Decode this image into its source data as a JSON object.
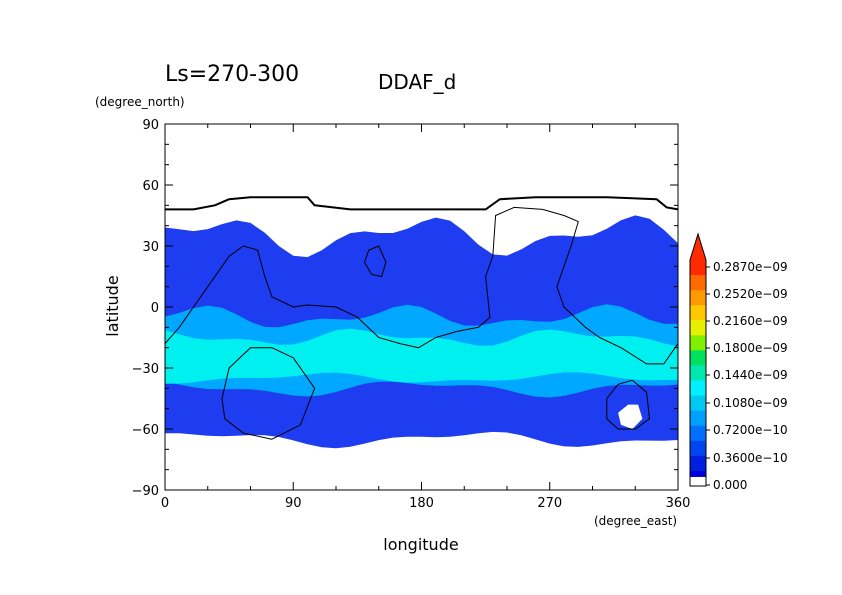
{
  "chart_data": {
    "type": "heatmap",
    "title": "DDAF_d",
    "subtitle": "Ls=270-300",
    "xlabel": "longitude",
    "ylabel": "latitude",
    "x_units": "(degree_east)",
    "y_units": "(degree_north)",
    "xlim": [
      0,
      360
    ],
    "ylim": [
      -90,
      90
    ],
    "x_ticks": [
      "0",
      "90",
      "180",
      "270",
      "360"
    ],
    "y_ticks": [
      "90",
      "60",
      "30",
      "0",
      "−30",
      "−60",
      "−90"
    ],
    "x_tick_values": [
      0,
      90,
      180,
      270,
      360
    ],
    "y_tick_values": [
      90,
      60,
      30,
      0,
      -30,
      -60,
      -90
    ],
    "colorbar": {
      "labels": [
        "0.2870e−09",
        "0.2520e−09",
        "0.2160e−09",
        "0.1800e−09",
        "0.1440e−09",
        "0.1080e−09",
        "0.7200e−10",
        "0.3600e−10",
        "0.000"
      ],
      "level_values": [
        2.87e-10,
        2.52e-10,
        2.16e-10,
        1.8e-10,
        1.44e-10,
        1.08e-10,
        7.2e-11,
        3.6e-11,
        0
      ],
      "colors": [
        "#ff2a00",
        "#ff6a00",
        "#ff9a00",
        "#ffc800",
        "#e6f000",
        "#80f000",
        "#00e060",
        "#00e8b0",
        "#00f0ff",
        "#00c8f0",
        "#00a0ff",
        "#0070ff",
        "#0046f0",
        "#0020e0",
        "#0000d8",
        "#ffffff"
      ],
      "extend": "max"
    },
    "field_bands": [
      {
        "name": "low-values",
        "lat_range": [
          -65,
          35
        ],
        "level": "0 - 0.36e-10",
        "color": "#1e3cf0"
      },
      {
        "name": "mid-values",
        "lat_range": [
          -40,
          -5
        ],
        "level": "0.36e-10 - 0.72e-10",
        "color": "#00a8ff"
      },
      {
        "name": "peak-band",
        "lat_range": [
          -35,
          -15
        ],
        "level": "0.72e-10 - 0.108e-09",
        "color": "#00f0f0"
      }
    ],
    "contour_lines": [
      {
        "name": "north-edge",
        "points": [
          [
            0,
            48
          ],
          [
            20,
            48
          ],
          [
            35,
            50
          ],
          [
            45,
            53
          ],
          [
            60,
            54
          ],
          [
            100,
            54
          ],
          [
            105,
            50
          ],
          [
            130,
            48
          ],
          [
            200,
            48
          ],
          [
            225,
            48
          ],
          [
            235,
            53
          ],
          [
            260,
            54
          ],
          [
            310,
            54
          ],
          [
            345,
            53
          ],
          [
            352,
            49
          ],
          [
            360,
            48
          ]
        ]
      },
      {
        "name": "continent-boundary",
        "points": [
          [
            0,
            -18
          ],
          [
            10,
            -10
          ],
          [
            20,
            0
          ],
          [
            30,
            10
          ],
          [
            45,
            25
          ],
          [
            55,
            30
          ],
          [
            65,
            28
          ],
          [
            70,
            15
          ],
          [
            75,
            5
          ],
          [
            90,
            0
          ],
          [
            100,
            1
          ],
          [
            120,
            0
          ],
          [
            135,
            -5
          ],
          [
            150,
            -15
          ],
          [
            165,
            -18
          ],
          [
            178,
            -20
          ],
          [
            190,
            -15
          ],
          [
            205,
            -12
          ],
          [
            220,
            -10
          ],
          [
            228,
            -5
          ],
          [
            225,
            15
          ],
          [
            230,
            25
          ],
          [
            232,
            45
          ],
          [
            245,
            49
          ],
          [
            265,
            48
          ],
          [
            280,
            45
          ],
          [
            290,
            42
          ],
          [
            285,
            30
          ],
          [
            280,
            20
          ],
          [
            275,
            10
          ],
          [
            280,
            0
          ],
          [
            295,
            -10
          ],
          [
            305,
            -15
          ],
          [
            320,
            -20
          ],
          [
            338,
            -28
          ],
          [
            350,
            -28
          ],
          [
            360,
            -18
          ]
        ]
      },
      {
        "name": "southern-basin",
        "points": [
          [
            40,
            -45
          ],
          [
            45,
            -30
          ],
          [
            60,
            -20
          ],
          [
            75,
            -20
          ],
          [
            90,
            -25
          ],
          [
            105,
            -40
          ],
          [
            95,
            -58
          ],
          [
            75,
            -65
          ],
          [
            55,
            -62
          ],
          [
            42,
            -55
          ],
          [
            40,
            -45
          ]
        ]
      },
      {
        "name": "small-island",
        "points": [
          [
            140,
            22
          ],
          [
            143,
            28
          ],
          [
            150,
            30
          ],
          [
            155,
            22
          ],
          [
            152,
            15
          ],
          [
            145,
            16
          ],
          [
            140,
            22
          ]
        ]
      },
      {
        "name": "southeast-loop",
        "points": [
          [
            310,
            -45
          ],
          [
            318,
            -38
          ],
          [
            328,
            -36
          ],
          [
            338,
            -42
          ],
          [
            340,
            -55
          ],
          [
            330,
            -60
          ],
          [
            318,
            -60
          ],
          [
            310,
            -55
          ],
          [
            310,
            -45
          ]
        ]
      }
    ],
    "holes": [
      {
        "name": "white-patch",
        "points": [
          [
            318,
            -52
          ],
          [
            325,
            -48
          ],
          [
            332,
            -48
          ],
          [
            335,
            -55
          ],
          [
            328,
            -60
          ],
          [
            320,
            -58
          ],
          [
            318,
            -52
          ]
        ]
      }
    ]
  }
}
